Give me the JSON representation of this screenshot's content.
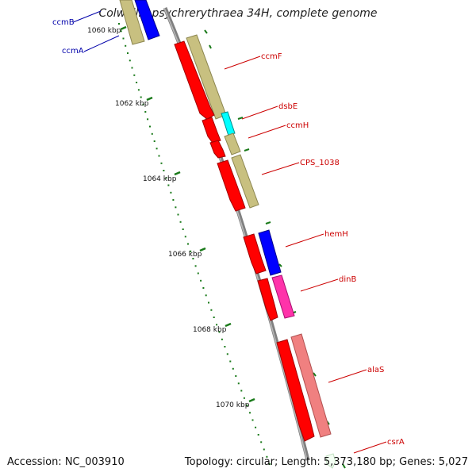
{
  "title": "Colwellia psychrerythraea 34H, complete genome",
  "footer": {
    "accession": "Accession: NC_003910",
    "summary": "Topology: circular; Length: 5,373,180 bp; Genes: 5,027"
  },
  "ticks": [
    "1060 kbp",
    "1062 kbp",
    "1064 kbp",
    "1066 kbp",
    "1068 kbp",
    "1070 kbp"
  ],
  "genes": [
    {
      "label": "ccmB",
      "color": "#0000aa"
    },
    {
      "label": "ccmA",
      "color": "#0000aa"
    },
    {
      "label": "ccmF",
      "color": "#cc0000"
    },
    {
      "label": "dsbE",
      "color": "#cc0000"
    },
    {
      "label": "ccmH",
      "color": "#cc0000"
    },
    {
      "label": "CPS_1038",
      "color": "#cc0000"
    },
    {
      "label": "hemH",
      "color": "#cc0000"
    },
    {
      "label": "dinB",
      "color": "#cc0000"
    },
    {
      "label": "alaS",
      "color": "#cc0000"
    },
    {
      "label": "csrA",
      "color": "#cc0000"
    }
  ],
  "colors": {
    "cds_arrow": "#ff0000",
    "cog_khaki": "#c8c080",
    "cog_blue": "#0000ff",
    "cog_cyan": "#00ffff",
    "cog_magenta": "#ff33aa",
    "cog_pink": "#f08080",
    "backbone": "#808080",
    "tick": "#1a7a1a"
  }
}
